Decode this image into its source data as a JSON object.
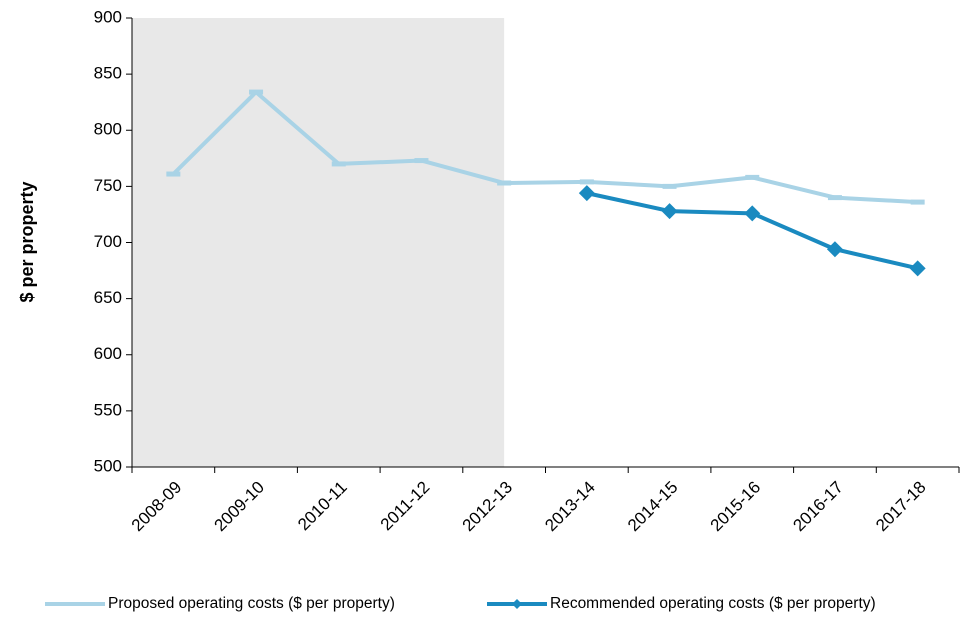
{
  "chart_data": {
    "type": "line",
    "y_label": "$ per property",
    "categories": [
      "2008-09",
      "2009-10",
      "2010-11",
      "2011-12",
      "2012-13",
      "2013-14",
      "2014-15",
      "2015-16",
      "2016-17",
      "2017-18"
    ],
    "series": [
      {
        "name": "Proposed operating costs ($ per property)",
        "color": "#a9d3e6",
        "marker": "dash",
        "values": [
          761,
          834,
          770,
          773,
          753,
          754,
          750,
          758,
          740,
          736
        ]
      },
      {
        "name": "Recommended operating costs ($ per property)",
        "color": "#1a8ac0",
        "marker": "diamond",
        "values": [
          null,
          null,
          null,
          null,
          null,
          744,
          728,
          726,
          694,
          677
        ]
      }
    ],
    "ylim": [
      500,
      900
    ],
    "yticks": [
      500,
      550,
      600,
      650,
      700,
      750,
      800,
      850,
      900
    ],
    "grid": false,
    "shaded_until": "2012-13",
    "shade_color": "#e8e8e8",
    "legend": "bottom"
  }
}
